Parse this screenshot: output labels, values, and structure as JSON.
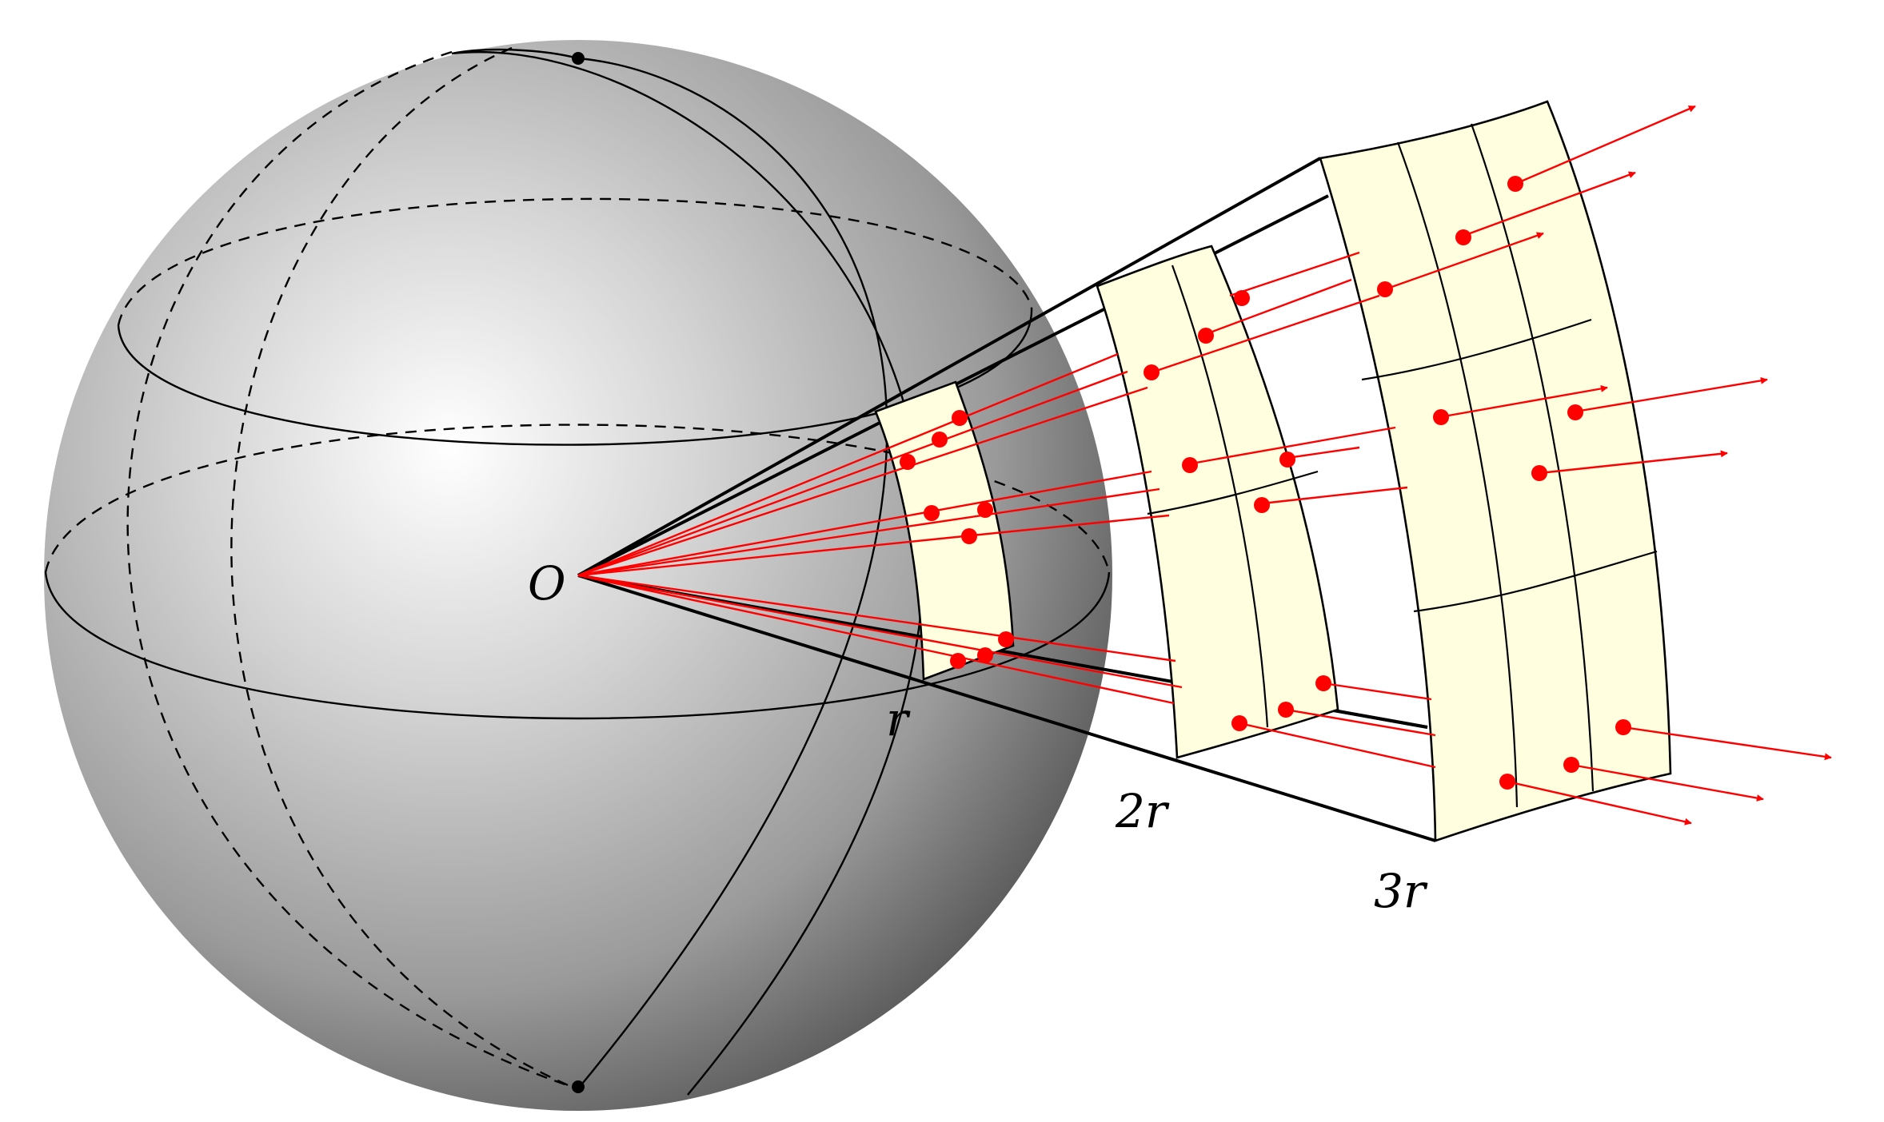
{
  "labels": {
    "origin": "O",
    "r1": "r",
    "r2": "2r",
    "r3": "3r"
  },
  "colors": {
    "rays": "#ff0000",
    "patch_fill": "#ffffe0",
    "sphere_light": "#ffffff",
    "sphere_dark": "#5a5a5a",
    "lines": "#000000"
  }
}
